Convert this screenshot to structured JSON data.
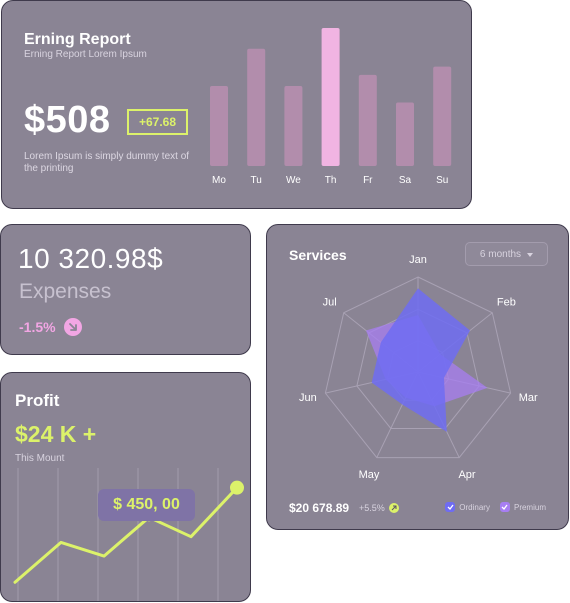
{
  "earning": {
    "title": "Erning Report",
    "subtitle": "Erning Report Lorem Ipsum",
    "amount": "$508",
    "badge": "+67.68",
    "description": "Lorem Ipsum is simply dummy text of the printing"
  },
  "expenses": {
    "amount": "10 320.98$",
    "label": "Expenses",
    "change": "-1.5%"
  },
  "profit": {
    "title": "Profit",
    "amount": "$24 K +",
    "subtitle": "This Mount",
    "tooltip": "$ 450, 00"
  },
  "services": {
    "title": "Services",
    "period": "6 months",
    "total": "$20 678.89",
    "change": "+5.5%",
    "legend": [
      "Ordinary",
      "Premium"
    ]
  },
  "colors": {
    "card_bg": "#8a8494",
    "accent_lime": "#dcf26a",
    "accent_pink": "#f2a6e4",
    "series_ordinary": "#6f6cf2",
    "series_premium": "#a77ef2"
  },
  "chart_data": [
    {
      "type": "bar",
      "categories": [
        "Mo",
        "Tu",
        "We",
        "Th",
        "Fr",
        "Sa",
        "Su"
      ],
      "values": [
        58,
        85,
        58,
        100,
        66,
        46,
        72
      ],
      "highlight_index": 3
    },
    {
      "type": "line",
      "x": [
        0,
        1,
        2,
        3,
        4,
        5
      ],
      "values": [
        5,
        40,
        28,
        62,
        45,
        88
      ],
      "highlight_point": 3
    },
    {
      "type": "radar",
      "categories": [
        "Jan",
        "Feb",
        "Mar",
        "Apr",
        "May",
        "Jun",
        "Jul"
      ],
      "series": [
        {
          "name": "Ordinary",
          "values": [
            88,
            70,
            28,
            70,
            38,
            50,
            50
          ]
        },
        {
          "name": "Premium",
          "values": [
            60,
            30,
            75,
            40,
            30,
            35,
            70
          ]
        }
      ]
    }
  ]
}
